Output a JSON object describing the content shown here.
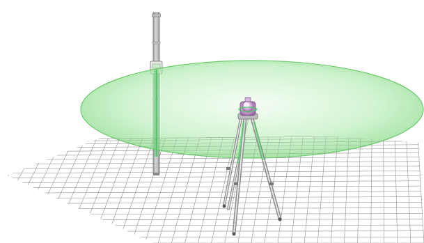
{
  "colors": {
    "background": "#ffffff",
    "grid_line": "#9a9a9a",
    "laser_plane_fill": "#8fe08f",
    "laser_plane_edge": "#4fbf4f",
    "laser_beam": "#3fcf5f",
    "metal_light": "#d8d8d8",
    "metal_dark": "#8a8a8a",
    "device_body": "#c58fd0",
    "device_highlight": "#f6e6f8"
  },
  "icons": {
    "laser_device": "rotary-laser-level-icon",
    "staff": "leveling-staff-icon",
    "tripod": "tripod-icon"
  }
}
